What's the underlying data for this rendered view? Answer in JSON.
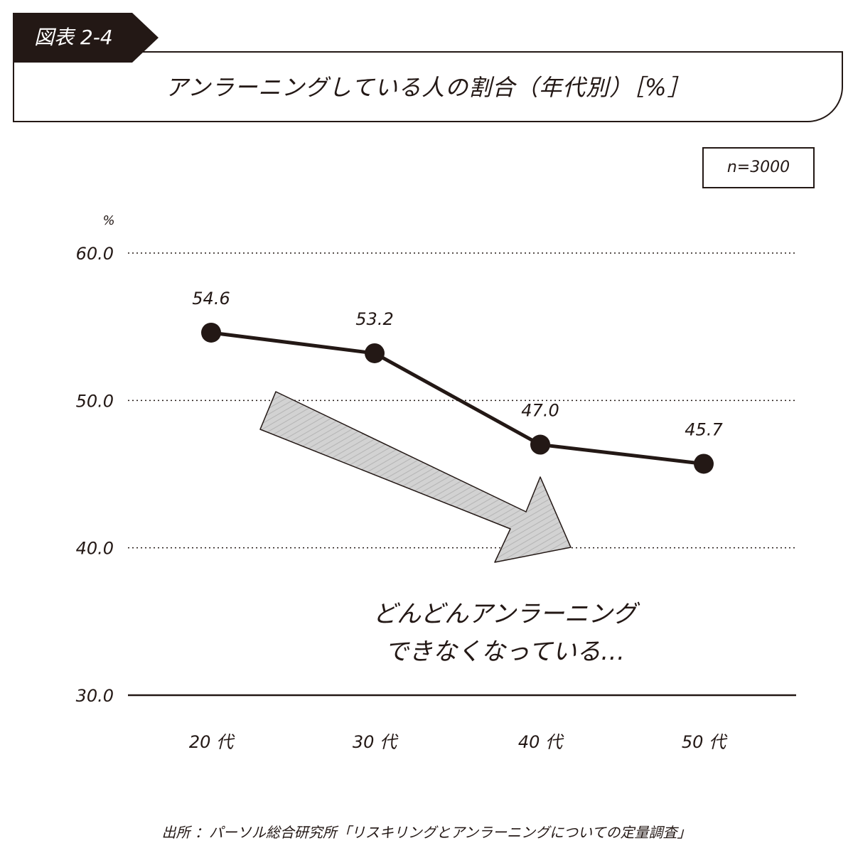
{
  "figure_label": "図表 2-4",
  "title": "アンラーニングしている人の割合（年代別）［%］",
  "sample_size": "n=3000",
  "source": "出所 ：パーソル総合研究所「リスキリングとアンラーニングについての定量調査」",
  "annotation": {
    "line1": "どんどんアンラーニング",
    "line2": "できなくなっている…"
  },
  "colors": {
    "ink": "#231815",
    "arrow_fill": "#cfcfcf",
    "background": "#ffffff"
  },
  "chart_data": {
    "type": "line",
    "title": "アンラーニングしている人の割合（年代別）［%］",
    "categories": [
      "20 代",
      "30 代",
      "40 代",
      "50 代"
    ],
    "values": [
      54.6,
      53.2,
      47.0,
      45.7
    ],
    "value_labels": [
      "54.6",
      "53.2",
      "47.0",
      "45.7"
    ],
    "ylabel": "%",
    "xlabel": "",
    "ylim": [
      30,
      60
    ],
    "yticks": [
      30,
      40,
      50,
      60
    ],
    "ytick_labels": [
      "30.0",
      "40.0",
      "50.0",
      "60.0"
    ],
    "grid": true,
    "legend": "none"
  }
}
